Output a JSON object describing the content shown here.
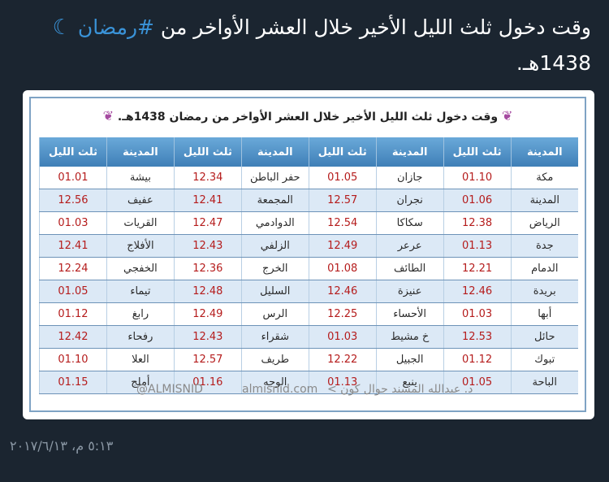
{
  "tweet": {
    "text_before": "وقت دخول ثلث الليل الأخير خلال العشر الأواخر من ",
    "hashtag": "#رمضان",
    "moon_icon": "crescent-moon",
    "text_after": "1438هـ."
  },
  "card": {
    "title": "وقت دخول ثلث الليل الأخير خلال العشر الأواخر من رمضان 1438هـ.",
    "headers": [
      "المدينة",
      "ثلث الليل",
      "المدينة",
      "ثلث الليل",
      "المدينة",
      "ثلث الليل",
      "المدينة",
      "ثلث الليل"
    ],
    "rows": [
      [
        "مكة",
        "01.10",
        "جازان",
        "01.05",
        "حفر الباطن",
        "12.34",
        "بيشة",
        "01.01"
      ],
      [
        "المدينة",
        "01.06",
        "نجران",
        "12.57",
        "المجمعة",
        "12.41",
        "عفيف",
        "12.56"
      ],
      [
        "الرياض",
        "12.38",
        "سكاكا",
        "12.54",
        "الدوادمي",
        "12.47",
        "القريات",
        "01.03"
      ],
      [
        "جدة",
        "01.13",
        "عرعر",
        "12.49",
        "الزلفي",
        "12.43",
        "الأفلاج",
        "12.41"
      ],
      [
        "الدمام",
        "12.21",
        "الطائف",
        "01.08",
        "الخرج",
        "12.36",
        "الخفجي",
        "12.24"
      ],
      [
        "بريدة",
        "12.46",
        "عنيزة",
        "12.46",
        "السليل",
        "12.48",
        "تيماء",
        "01.05"
      ],
      [
        "أبها",
        "01.03",
        "الأحساء",
        "12.25",
        "الرس",
        "12.49",
        "رابغ",
        "01.12"
      ],
      [
        "حائل",
        "12.53",
        "خ مشيط",
        "01.03",
        "شقراء",
        "12.43",
        "رفحاء",
        "12.42"
      ],
      [
        "تبوك",
        "01.12",
        "الجبيل",
        "12.22",
        "طريف",
        "12.57",
        "العلا",
        "01.10"
      ],
      [
        "الباحة",
        "01.05",
        "ينبع",
        "01.13",
        "الوجه",
        "01.16",
        "أملج",
        "01.15"
      ]
    ],
    "footer_handle": "@ALMISNID",
    "footer_site": "almisnid.com",
    "footer_author": "د. عبدالله المسند  جوال كون >"
  },
  "timestamp": "٥:١٣ م، ٢٠١٧/٦/١٣"
}
